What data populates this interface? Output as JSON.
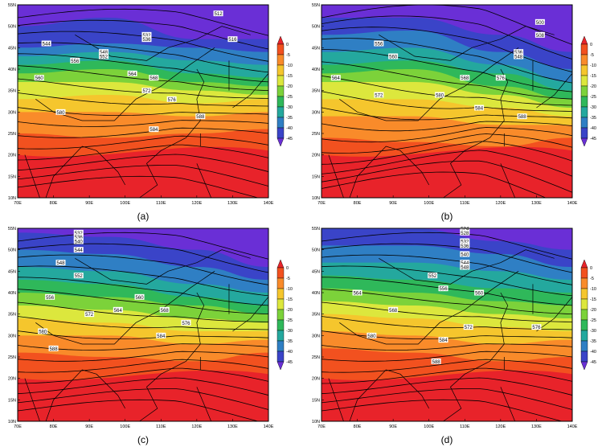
{
  "figure": {
    "panels": [
      {
        "label": "(a)"
      },
      {
        "label": "(b)"
      },
      {
        "label": "(c)"
      },
      {
        "label": "(d)"
      }
    ]
  },
  "chart_data": [
    {
      "type": "heatmap",
      "panel": "(a)",
      "title": "",
      "x_tick_labels": [
        "70E",
        "80E",
        "90E",
        "100E",
        "110E",
        "120E",
        "130E",
        "140E"
      ],
      "y_tick_labels": [
        "10N",
        "15N",
        "20N",
        "25N",
        "30N",
        "35N",
        "40N",
        "45N",
        "50N",
        "55N"
      ],
      "xlim": [
        70,
        140
      ],
      "ylim": [
        10,
        55
      ],
      "colorbar": {
        "ticks": [
          "0",
          "-5",
          "-10",
          "-15",
          "-20",
          "-25",
          "-30",
          "-35",
          "-40",
          "-45"
        ],
        "colors": [
          "#e8232a",
          "#f2511f",
          "#f98b2a",
          "#f5c62d",
          "#dce73d",
          "#7cd23a",
          "#2fb85a",
          "#24a89e",
          "#2f7fc4",
          "#3a44c8",
          "#6a2fd6"
        ]
      },
      "temperature_bands": [
        {
          "lat_boundaries_at_lon": {
            "70": 44,
            "90": 46,
            "110": 49,
            "125": 47,
            "140": 46
          },
          "value": -35
        },
        {
          "lat_boundaries_at_lon": {
            "70": 41,
            "90": 43,
            "110": 44,
            "125": 42,
            "140": 42
          },
          "value": -25
        },
        {
          "lat_boundaries_at_lon": {
            "70": 37,
            "90": 39,
            "110": 40,
            "125": 38,
            "140": 38
          },
          "value": -15
        },
        {
          "lat_boundaries_at_lon": {
            "70": 33,
            "90": 34,
            "110": 34,
            "125": 32,
            "140": 33
          },
          "value": -10
        },
        {
          "lat_boundaries_at_lon": {
            "70": 28,
            "90": 28,
            "110": 28,
            "125": 27,
            "140": 27
          },
          "value": -5
        },
        {
          "lat_boundaries_at_lon": {
            "70": 23,
            "90": 22,
            "110": 22,
            "125": 22,
            "140": 22
          },
          "value": 0
        }
      ],
      "contour_labels": [
        "512",
        "516",
        "532",
        "536",
        "544",
        "548",
        "552",
        "556",
        "560",
        "564",
        "568",
        "572",
        "576",
        "580",
        "584",
        "588"
      ]
    },
    {
      "type": "heatmap",
      "panel": "(b)",
      "x_tick_labels": [
        "70E",
        "80E",
        "90E",
        "100E",
        "110E",
        "120E",
        "130E",
        "140E"
      ],
      "y_tick_labels": [
        "10N",
        "15N",
        "20N",
        "25N",
        "30N",
        "35N",
        "40N",
        "45N",
        "50N",
        "55N"
      ],
      "xlim": [
        70,
        140
      ],
      "ylim": [
        10,
        55
      ],
      "colorbar": {
        "ticks": [
          "0",
          "-5",
          "-10",
          "-15",
          "-20",
          "-25",
          "-30",
          "-35",
          "-40",
          "-45"
        ]
      },
      "contour_labels": [
        "500",
        "508",
        "536",
        "548",
        "556",
        "560",
        "564",
        "568",
        "572",
        "576",
        "580",
        "584",
        "588"
      ]
    },
    {
      "type": "heatmap",
      "panel": "(c)",
      "x_tick_labels": [
        "70E",
        "80E",
        "90E",
        "100E",
        "110E",
        "120E",
        "130E",
        "140E"
      ],
      "y_tick_labels": [
        "10N",
        "15N",
        "20N",
        "25N",
        "30N",
        "35N",
        "40N",
        "45N",
        "50N",
        "55N"
      ],
      "xlim": [
        70,
        140
      ],
      "ylim": [
        10,
        55
      ],
      "colorbar": {
        "ticks": [
          "0",
          "-5",
          "-10",
          "-15",
          "-20",
          "-25",
          "-30",
          "-35",
          "-40",
          "-45"
        ]
      },
      "contour_labels": [
        "532",
        "536",
        "540",
        "544",
        "548",
        "552",
        "556",
        "560",
        "564",
        "568",
        "572",
        "576",
        "580",
        "584",
        "588"
      ]
    },
    {
      "type": "heatmap",
      "panel": "(d)",
      "x_tick_labels": [
        "70E",
        "80E",
        "90E",
        "100E",
        "110E",
        "120E",
        "130E",
        "140E"
      ],
      "y_tick_labels": [
        "10N",
        "15N",
        "20N",
        "25N",
        "30N",
        "35N",
        "40N",
        "45N",
        "50N",
        "55N"
      ],
      "xlim": [
        70,
        140
      ],
      "ylim": [
        10,
        55
      ],
      "colorbar": {
        "ticks": [
          "0",
          "-5",
          "-10",
          "-15",
          "-20",
          "-25",
          "-30",
          "-35",
          "-40",
          "-45"
        ]
      },
      "contour_labels": [
        "524",
        "528",
        "532",
        "536",
        "540",
        "544",
        "548",
        "552",
        "556",
        "560",
        "564",
        "568",
        "572",
        "576",
        "580",
        "584",
        "588"
      ]
    }
  ]
}
